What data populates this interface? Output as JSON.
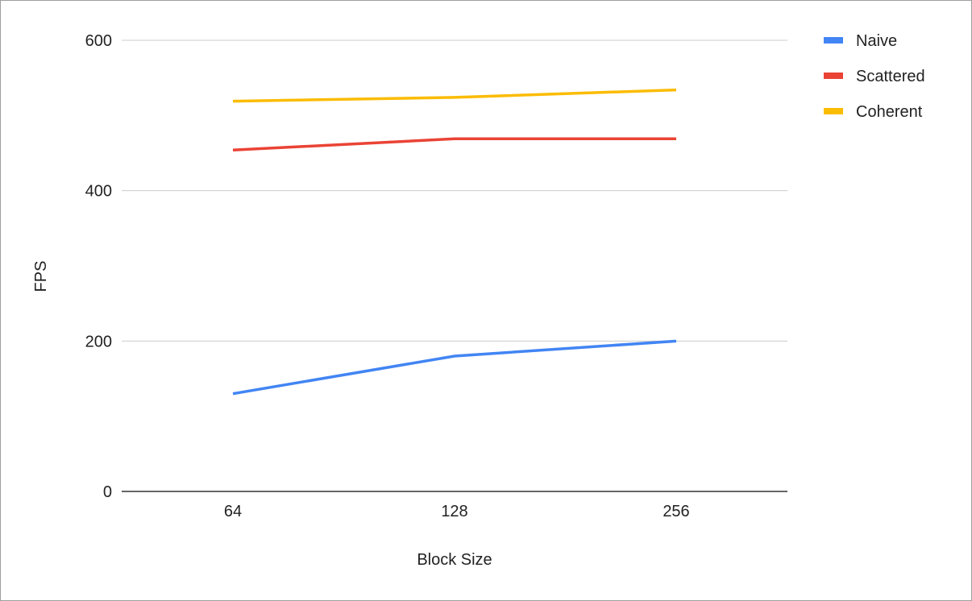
{
  "chart_data": {
    "type": "line",
    "title": "",
    "xlabel": "Block Size",
    "ylabel": "FPS",
    "categories": [
      "64",
      "128",
      "256"
    ],
    "ylim": [
      0,
      600
    ],
    "yticks": [
      0,
      200,
      400,
      600
    ],
    "grid": true,
    "legend_position": "right",
    "series": [
      {
        "name": "Naive",
        "color": "#4285f4",
        "values": [
          130,
          180,
          200
        ]
      },
      {
        "name": "Scattered",
        "color": "#ea4335",
        "values": [
          454,
          469,
          469
        ]
      },
      {
        "name": "Coherent",
        "color": "#fbbc04",
        "values": [
          519,
          524,
          534
        ]
      }
    ]
  }
}
